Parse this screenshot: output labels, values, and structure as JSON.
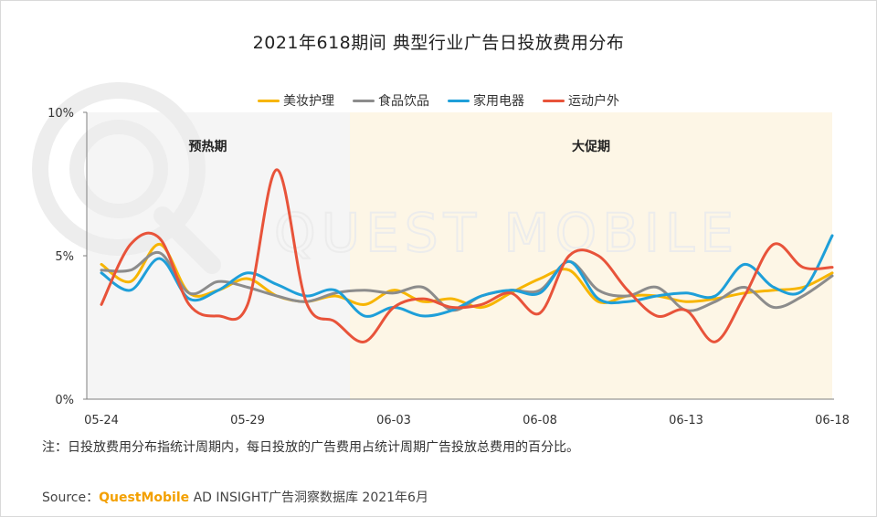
{
  "title": "2021年618期间 典型行业广告日投放费用分布",
  "note": "注：日投放费用分布指统计周期内，每日投放的广告费用占统计周期广告投放总费用的百分比。",
  "source": {
    "prefix": "Source：",
    "brand": "QuestMobile",
    "suffix": " AD INSIGHT广告洞察数据库 2021年6月"
  },
  "watermark": "QUEST MOBILE",
  "chart_data": {
    "type": "line",
    "title": "2021年618期间 典型行业广告日投放费用分布",
    "ylim": [
      0,
      10
    ],
    "y_ticks": [
      {
        "value": 0,
        "label": "0%"
      },
      {
        "value": 5,
        "label": "5%"
      },
      {
        "value": 10,
        "label": "10%"
      }
    ],
    "x_tick_labels": [
      "05-24",
      "05-29",
      "06-03",
      "06-08",
      "06-13",
      "06-18"
    ],
    "x_tick_index": [
      0,
      5,
      10,
      15,
      20,
      25
    ],
    "categories": [
      "05-24",
      "05-25",
      "05-26",
      "05-27",
      "05-28",
      "05-29",
      "05-30",
      "05-31",
      "06-01",
      "06-02",
      "06-03",
      "06-04",
      "06-05",
      "06-06",
      "06-07",
      "06-08",
      "06-09",
      "06-10",
      "06-11",
      "06-12",
      "06-13",
      "06-14",
      "06-15",
      "06-16",
      "06-17",
      "06-18"
    ],
    "legend_position": "top",
    "grid": false,
    "periods": [
      {
        "label": "预热期",
        "start": "05-24",
        "end": "06-01",
        "color": "#f5f5f5"
      },
      {
        "label": "大促期",
        "start": "06-01",
        "end": "06-18",
        "color": "#fdf6e6"
      }
    ],
    "series": [
      {
        "name": "美妆护理",
        "color": "#f7b500",
        "values": [
          4.7,
          4.1,
          5.4,
          3.7,
          3.8,
          4.2,
          3.6,
          3.4,
          3.6,
          3.3,
          3.8,
          3.4,
          3.5,
          3.2,
          3.7,
          4.2,
          4.5,
          3.4,
          3.6,
          3.6,
          3.4,
          3.5,
          3.7,
          3.8,
          3.9,
          4.4
        ]
      },
      {
        "name": "食品饮品",
        "color": "#8c8c8c",
        "values": [
          4.5,
          4.5,
          5.1,
          3.7,
          4.1,
          3.9,
          3.6,
          3.4,
          3.7,
          3.8,
          3.7,
          3.9,
          3.1,
          3.6,
          3.8,
          3.8,
          4.8,
          3.8,
          3.6,
          3.9,
          3.1,
          3.4,
          3.9,
          3.2,
          3.6,
          4.3
        ]
      },
      {
        "name": "家用电器",
        "color": "#1e9fd9",
        "values": [
          4.4,
          3.8,
          4.9,
          3.5,
          3.8,
          4.4,
          4.0,
          3.6,
          3.8,
          2.9,
          3.2,
          2.9,
          3.1,
          3.6,
          3.8,
          3.7,
          4.8,
          3.5,
          3.4,
          3.6,
          3.7,
          3.6,
          4.7,
          3.9,
          3.8,
          5.7
        ]
      },
      {
        "name": "运动户外",
        "color": "#e8533a",
        "values": [
          3.3,
          5.4,
          5.6,
          3.3,
          2.9,
          3.3,
          8.0,
          3.4,
          2.7,
          2.0,
          3.2,
          3.5,
          3.2,
          3.3,
          3.7,
          3.0,
          5.0,
          5.0,
          3.8,
          2.9,
          3.1,
          2.0,
          3.6,
          5.4,
          4.6,
          4.6
        ]
      }
    ]
  }
}
